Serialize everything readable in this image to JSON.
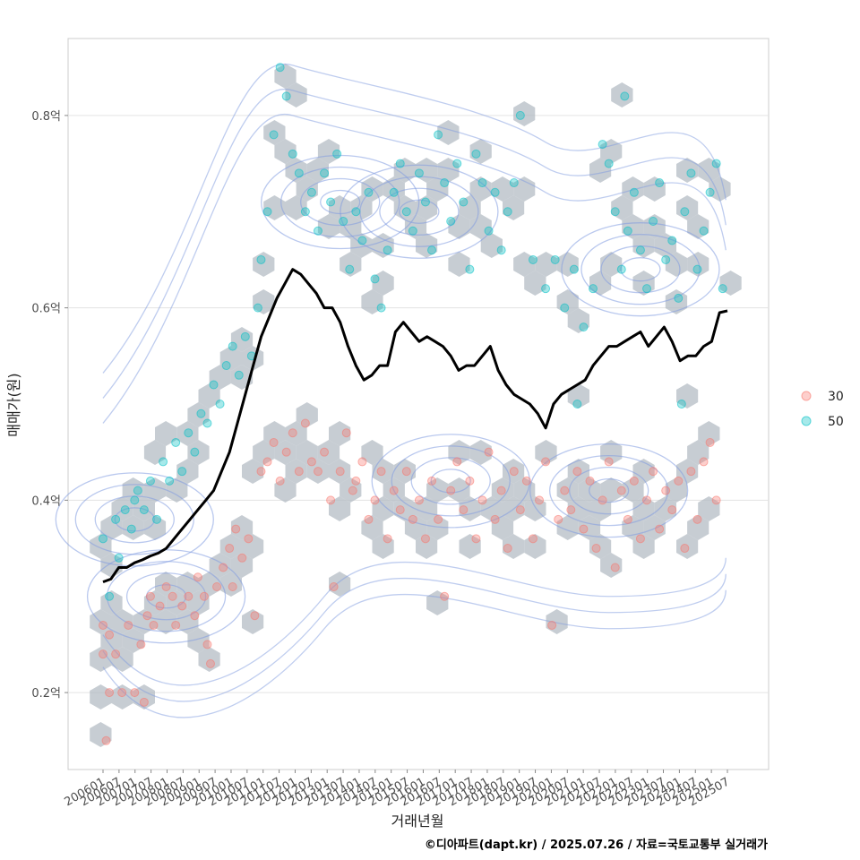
{
  "chart_data": {
    "type": "scatter",
    "title": "",
    "xlabel": "거래년월",
    "ylabel": "매매가(원)",
    "caption": "©디아파트(dapt.kr) / 2025.07.26 / 자료=국토교통부 실거래가",
    "ylim": [
      0.12,
      0.88
    ],
    "y_ticks": [
      0.2,
      0.4,
      0.6,
      0.8
    ],
    "y_tick_labels": [
      "0.2억",
      "0.4억",
      "0.6억",
      "0.8억"
    ],
    "x_tick_labels": [
      "200601",
      "200607",
      "200701",
      "200707",
      "200801",
      "200807",
      "200901",
      "200907",
      "201001",
      "201007",
      "201101",
      "201107",
      "201201",
      "201207",
      "201301",
      "201307",
      "201401",
      "201407",
      "201501",
      "201507",
      "201601",
      "201607",
      "201701",
      "201707",
      "201801",
      "201807",
      "201901",
      "201907",
      "202001",
      "202007",
      "202101",
      "202107",
      "202201",
      "202207",
      "202301",
      "202307",
      "202401",
      "202407",
      "202501",
      "202507"
    ],
    "legend": {
      "placement": "right",
      "entries": [
        {
          "label": "30",
          "color": "#F8766D"
        },
        {
          "label": "50",
          "color": "#00BFC4"
        }
      ]
    },
    "trend": {
      "name": "moving-average",
      "color": "#000000",
      "points": [
        [
          2006.0,
          0.315
        ],
        [
          2006.25,
          0.318
        ],
        [
          2006.5,
          0.33
        ],
        [
          2006.75,
          0.33
        ],
        [
          2007.0,
          0.335
        ],
        [
          2007.25,
          0.338
        ],
        [
          2007.5,
          0.342
        ],
        [
          2007.75,
          0.345
        ],
        [
          2008.0,
          0.35
        ],
        [
          2008.25,
          0.36
        ],
        [
          2008.5,
          0.37
        ],
        [
          2008.75,
          0.38
        ],
        [
          2009.0,
          0.39
        ],
        [
          2009.25,
          0.4
        ],
        [
          2009.5,
          0.41
        ],
        [
          2009.75,
          0.43
        ],
        [
          2010.0,
          0.45
        ],
        [
          2010.25,
          0.48
        ],
        [
          2010.5,
          0.51
        ],
        [
          2010.75,
          0.54
        ],
        [
          2011.0,
          0.57
        ],
        [
          2011.25,
          0.59
        ],
        [
          2011.5,
          0.61
        ],
        [
          2011.75,
          0.625
        ],
        [
          2012.0,
          0.64
        ],
        [
          2012.25,
          0.635
        ],
        [
          2012.5,
          0.625
        ],
        [
          2012.75,
          0.615
        ],
        [
          2013.0,
          0.6
        ],
        [
          2013.25,
          0.6
        ],
        [
          2013.5,
          0.585
        ],
        [
          2013.75,
          0.56
        ],
        [
          2014.0,
          0.54
        ],
        [
          2014.25,
          0.525
        ],
        [
          2014.5,
          0.53
        ],
        [
          2014.75,
          0.54
        ],
        [
          2015.0,
          0.54
        ],
        [
          2015.25,
          0.575
        ],
        [
          2015.5,
          0.585
        ],
        [
          2015.75,
          0.575
        ],
        [
          2016.0,
          0.565
        ],
        [
          2016.25,
          0.57
        ],
        [
          2016.5,
          0.565
        ],
        [
          2016.75,
          0.56
        ],
        [
          2017.0,
          0.55
        ],
        [
          2017.25,
          0.535
        ],
        [
          2017.5,
          0.54
        ],
        [
          2017.75,
          0.54
        ],
        [
          2018.0,
          0.55
        ],
        [
          2018.25,
          0.56
        ],
        [
          2018.5,
          0.535
        ],
        [
          2018.75,
          0.52
        ],
        [
          2019.0,
          0.51
        ],
        [
          2019.25,
          0.505
        ],
        [
          2019.5,
          0.5
        ],
        [
          2019.75,
          0.49
        ],
        [
          2020.0,
          0.475
        ],
        [
          2020.25,
          0.5
        ],
        [
          2020.5,
          0.51
        ],
        [
          2020.75,
          0.515
        ],
        [
          2021.0,
          0.52
        ],
        [
          2021.25,
          0.525
        ],
        [
          2021.5,
          0.54
        ],
        [
          2021.75,
          0.55
        ],
        [
          2022.0,
          0.56
        ],
        [
          2022.25,
          0.56
        ],
        [
          2022.5,
          0.565
        ],
        [
          2022.75,
          0.57
        ],
        [
          2023.0,
          0.575
        ],
        [
          2023.25,
          0.56
        ],
        [
          2023.5,
          0.57
        ],
        [
          2023.75,
          0.58
        ],
        [
          2024.0,
          0.565
        ],
        [
          2024.25,
          0.545
        ],
        [
          2024.5,
          0.55
        ],
        [
          2024.75,
          0.55
        ],
        [
          2025.0,
          0.56
        ],
        [
          2025.25,
          0.565
        ],
        [
          2025.5,
          0.595
        ],
        [
          2025.75,
          0.597
        ]
      ]
    },
    "density_centers": [
      {
        "x": 2007.0,
        "y": 0.38
      },
      {
        "x": 2008.0,
        "y": 0.3
      },
      {
        "x": 2013.5,
        "y": 0.71
      },
      {
        "x": 2016.0,
        "y": 0.7
      },
      {
        "x": 2023.0,
        "y": 0.64
      },
      {
        "x": 2017.0,
        "y": 0.42
      },
      {
        "x": 2022.0,
        "y": 0.41
      }
    ],
    "series": [
      {
        "name": "30",
        "color": "#F8766D",
        "points": [
          [
            2006.0,
            0.27
          ],
          [
            2006.0,
            0.24
          ],
          [
            2006.1,
            0.15
          ],
          [
            2006.2,
            0.26
          ],
          [
            2006.2,
            0.2
          ],
          [
            2006.4,
            0.24
          ],
          [
            2006.6,
            0.2
          ],
          [
            2006.8,
            0.27
          ],
          [
            2007.0,
            0.2
          ],
          [
            2007.2,
            0.25
          ],
          [
            2007.3,
            0.19
          ],
          [
            2007.4,
            0.28
          ],
          [
            2007.5,
            0.3
          ],
          [
            2007.6,
            0.27
          ],
          [
            2007.8,
            0.29
          ],
          [
            2008.0,
            0.31
          ],
          [
            2008.2,
            0.3
          ],
          [
            2008.3,
            0.27
          ],
          [
            2008.5,
            0.29
          ],
          [
            2008.7,
            0.3
          ],
          [
            2008.9,
            0.28
          ],
          [
            2009.0,
            0.32
          ],
          [
            2009.2,
            0.3
          ],
          [
            2009.3,
            0.25
          ],
          [
            2009.4,
            0.23
          ],
          [
            2009.6,
            0.31
          ],
          [
            2009.8,
            0.33
          ],
          [
            2010.0,
            0.35
          ],
          [
            2010.1,
            0.31
          ],
          [
            2010.2,
            0.37
          ],
          [
            2010.4,
            0.34
          ],
          [
            2010.6,
            0.36
          ],
          [
            2010.8,
            0.28
          ],
          [
            2011.0,
            0.43
          ],
          [
            2011.2,
            0.44
          ],
          [
            2011.4,
            0.46
          ],
          [
            2011.6,
            0.42
          ],
          [
            2011.8,
            0.45
          ],
          [
            2012.0,
            0.47
          ],
          [
            2012.2,
            0.43
          ],
          [
            2012.4,
            0.48
          ],
          [
            2012.6,
            0.44
          ],
          [
            2012.8,
            0.43
          ],
          [
            2013.0,
            0.45
          ],
          [
            2013.2,
            0.4
          ],
          [
            2013.3,
            0.31
          ],
          [
            2013.5,
            0.43
          ],
          [
            2013.7,
            0.47
          ],
          [
            2013.9,
            0.41
          ],
          [
            2014.0,
            0.42
          ],
          [
            2014.2,
            0.44
          ],
          [
            2014.4,
            0.38
          ],
          [
            2014.6,
            0.4
          ],
          [
            2014.8,
            0.43
          ],
          [
            2015.0,
            0.36
          ],
          [
            2015.2,
            0.41
          ],
          [
            2015.4,
            0.39
          ],
          [
            2015.6,
            0.43
          ],
          [
            2015.8,
            0.38
          ],
          [
            2016.0,
            0.4
          ],
          [
            2016.2,
            0.36
          ],
          [
            2016.4,
            0.42
          ],
          [
            2016.6,
            0.38
          ],
          [
            2016.8,
            0.3
          ],
          [
            2017.0,
            0.41
          ],
          [
            2017.2,
            0.44
          ],
          [
            2017.4,
            0.39
          ],
          [
            2017.6,
            0.42
          ],
          [
            2017.8,
            0.36
          ],
          [
            2018.0,
            0.4
          ],
          [
            2018.2,
            0.45
          ],
          [
            2018.4,
            0.38
          ],
          [
            2018.6,
            0.41
          ],
          [
            2018.8,
            0.35
          ],
          [
            2019.0,
            0.43
          ],
          [
            2019.2,
            0.39
          ],
          [
            2019.4,
            0.42
          ],
          [
            2019.6,
            0.36
          ],
          [
            2019.8,
            0.4
          ],
          [
            2020.0,
            0.44
          ],
          [
            2020.2,
            0.27
          ],
          [
            2020.4,
            0.38
          ],
          [
            2020.6,
            0.41
          ],
          [
            2020.8,
            0.39
          ],
          [
            2021.0,
            0.43
          ],
          [
            2021.2,
            0.37
          ],
          [
            2021.4,
            0.42
          ],
          [
            2021.6,
            0.35
          ],
          [
            2021.8,
            0.4
          ],
          [
            2022.0,
            0.44
          ],
          [
            2022.2,
            0.33
          ],
          [
            2022.4,
            0.41
          ],
          [
            2022.6,
            0.38
          ],
          [
            2022.8,
            0.42
          ],
          [
            2023.0,
            0.36
          ],
          [
            2023.2,
            0.4
          ],
          [
            2023.4,
            0.43
          ],
          [
            2023.6,
            0.37
          ],
          [
            2023.8,
            0.41
          ],
          [
            2024.0,
            0.39
          ],
          [
            2024.2,
            0.42
          ],
          [
            2024.4,
            0.35
          ],
          [
            2024.6,
            0.43
          ],
          [
            2024.8,
            0.38
          ],
          [
            2025.0,
            0.44
          ],
          [
            2025.2,
            0.46
          ],
          [
            2025.4,
            0.4
          ]
        ]
      },
      {
        "name": "50",
        "color": "#00BFC4",
        "points": [
          [
            2006.0,
            0.36
          ],
          [
            2006.2,
            0.3
          ],
          [
            2006.4,
            0.38
          ],
          [
            2006.5,
            0.34
          ],
          [
            2006.7,
            0.39
          ],
          [
            2006.9,
            0.37
          ],
          [
            2007.0,
            0.4
          ],
          [
            2007.1,
            0.41
          ],
          [
            2007.3,
            0.39
          ],
          [
            2007.5,
            0.42
          ],
          [
            2007.7,
            0.38
          ],
          [
            2007.9,
            0.44
          ],
          [
            2008.1,
            0.42
          ],
          [
            2008.3,
            0.46
          ],
          [
            2008.5,
            0.43
          ],
          [
            2008.7,
            0.47
          ],
          [
            2008.9,
            0.45
          ],
          [
            2009.1,
            0.49
          ],
          [
            2009.3,
            0.48
          ],
          [
            2009.5,
            0.52
          ],
          [
            2009.7,
            0.5
          ],
          [
            2009.9,
            0.54
          ],
          [
            2010.1,
            0.56
          ],
          [
            2010.3,
            0.53
          ],
          [
            2010.5,
            0.57
          ],
          [
            2010.7,
            0.55
          ],
          [
            2010.9,
            0.6
          ],
          [
            2011.0,
            0.65
          ],
          [
            2011.2,
            0.7
          ],
          [
            2011.4,
            0.78
          ],
          [
            2011.6,
            0.85
          ],
          [
            2011.8,
            0.82
          ],
          [
            2012.0,
            0.76
          ],
          [
            2012.2,
            0.74
          ],
          [
            2012.4,
            0.7
          ],
          [
            2012.6,
            0.72
          ],
          [
            2012.8,
            0.68
          ],
          [
            2013.0,
            0.74
          ],
          [
            2013.2,
            0.71
          ],
          [
            2013.4,
            0.76
          ],
          [
            2013.6,
            0.69
          ],
          [
            2013.8,
            0.64
          ],
          [
            2014.0,
            0.7
          ],
          [
            2014.2,
            0.67
          ],
          [
            2014.4,
            0.72
          ],
          [
            2014.6,
            0.63
          ],
          [
            2014.8,
            0.6
          ],
          [
            2015.0,
            0.66
          ],
          [
            2015.2,
            0.72
          ],
          [
            2015.4,
            0.75
          ],
          [
            2015.6,
            0.7
          ],
          [
            2015.8,
            0.68
          ],
          [
            2016.0,
            0.74
          ],
          [
            2016.2,
            0.71
          ],
          [
            2016.4,
            0.66
          ],
          [
            2016.6,
            0.78
          ],
          [
            2016.8,
            0.73
          ],
          [
            2017.0,
            0.69
          ],
          [
            2017.2,
            0.75
          ],
          [
            2017.4,
            0.71
          ],
          [
            2017.6,
            0.64
          ],
          [
            2017.8,
            0.76
          ],
          [
            2018.0,
            0.73
          ],
          [
            2018.2,
            0.68
          ],
          [
            2018.4,
            0.72
          ],
          [
            2018.6,
            0.66
          ],
          [
            2018.8,
            0.7
          ],
          [
            2019.0,
            0.73
          ],
          [
            2019.2,
            0.8
          ],
          [
            2019.6,
            0.65
          ],
          [
            2020.0,
            0.62
          ],
          [
            2020.3,
            0.65
          ],
          [
            2020.6,
            0.6
          ],
          [
            2020.9,
            0.64
          ],
          [
            2021.2,
            0.58
          ],
          [
            2021.5,
            0.62
          ],
          [
            2021.8,
            0.77
          ],
          [
            2022.0,
            0.75
          ],
          [
            2022.2,
            0.7
          ],
          [
            2022.4,
            0.64
          ],
          [
            2022.6,
            0.68
          ],
          [
            2022.8,
            0.72
          ],
          [
            2023.0,
            0.66
          ],
          [
            2023.2,
            0.62
          ],
          [
            2023.4,
            0.69
          ],
          [
            2023.6,
            0.73
          ],
          [
            2023.8,
            0.65
          ],
          [
            2024.0,
            0.67
          ],
          [
            2024.2,
            0.61
          ],
          [
            2024.4,
            0.7
          ],
          [
            2024.6,
            0.74
          ],
          [
            2024.8,
            0.64
          ],
          [
            2025.0,
            0.68
          ],
          [
            2025.2,
            0.72
          ],
          [
            2025.4,
            0.75
          ],
          [
            2025.6,
            0.62
          ],
          [
            2022.5,
            0.82
          ],
          [
            2024.3,
            0.5
          ],
          [
            2021.0,
            0.5
          ]
        ]
      }
    ]
  }
}
